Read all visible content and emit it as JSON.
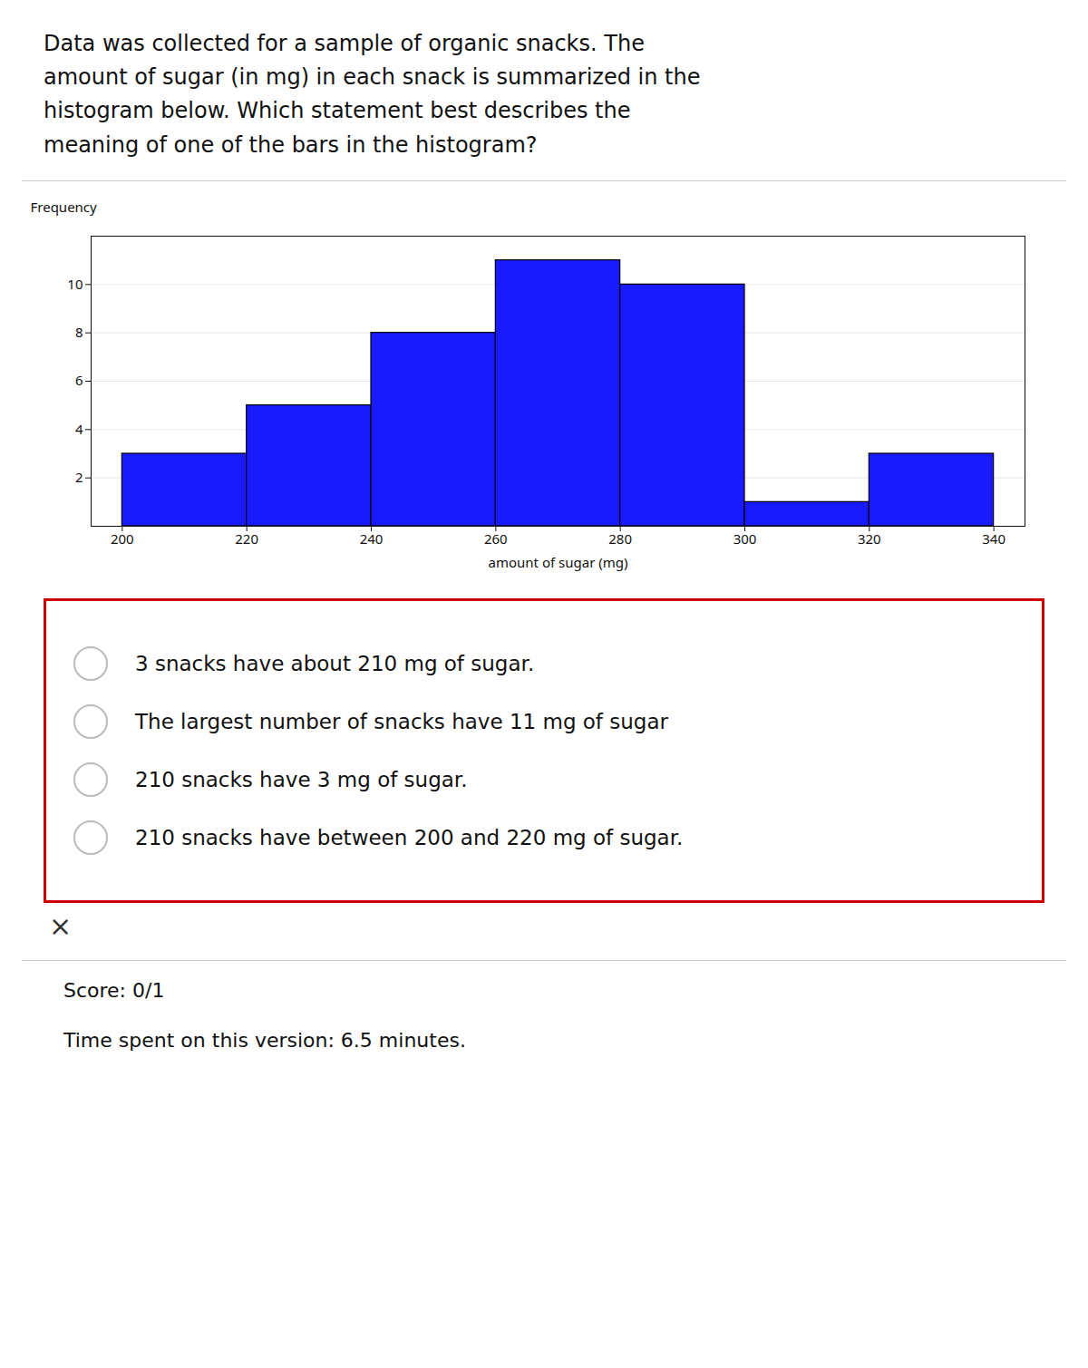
{
  "chart_data": {
    "type": "histogram",
    "title": "Data was collected for a sample of organic snacks. The\namount of sugar (in mg) in each snack is summarized in the\nhistogram below. Which statement best describes the\nmeaning of one of the bars in the histogram?",
    "bins": [
      200,
      220,
      240,
      260,
      280,
      300,
      320,
      340
    ],
    "values": [
      3,
      5,
      8,
      11,
      10,
      1,
      3
    ],
    "color": "#1a1aff",
    "xlabel": "amount of sugar (mg)",
    "ylabel": "Frequency",
    "xlim": [
      195,
      345
    ],
    "xticks": [
      200,
      220,
      240,
      260,
      280,
      300,
      320,
      340
    ],
    "ylim": [
      0,
      12
    ],
    "yticks": [
      2,
      4,
      6,
      8,
      10
    ],
    "grid": true,
    "annotations": [
      "3 snacks have about 210 mg of sugar.",
      "The largest number of snacks have 11 mg of sugar",
      "210 snacks have 3 mg of sugar.",
      "210 snacks have between 200 and 220 mg of sugar.",
      "×",
      "Score: 0/1",
      "Time spent on this version: 6.5 minutes."
    ]
  }
}
